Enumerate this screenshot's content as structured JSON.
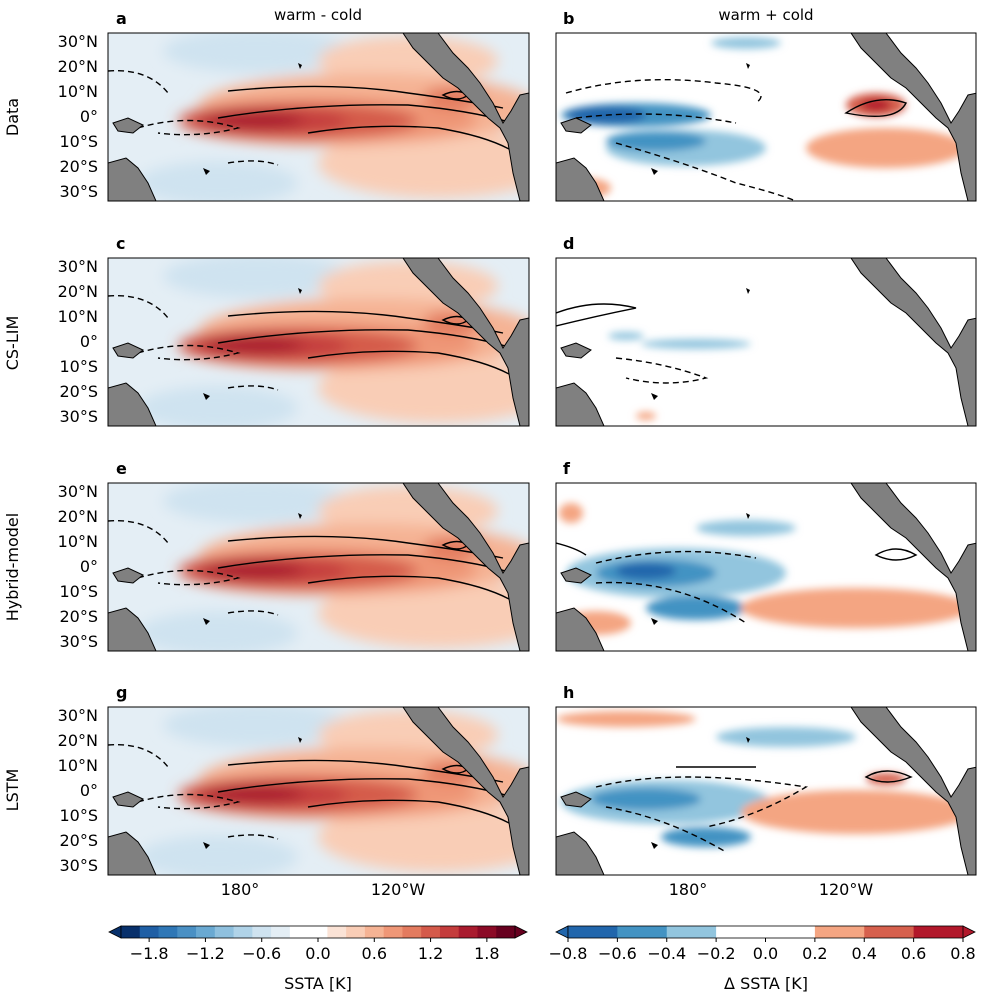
{
  "chart_data": {
    "type": "heatmap",
    "columns": [
      {
        "title": "warm - cold",
        "colorbar_label": "SSTA [K]"
      },
      {
        "title": "warm + cold",
        "colorbar_label": "Δ SSTA [K]"
      }
    ],
    "rows": [
      "Data",
      "CS-LIM",
      "Hybrid-model",
      "LSTM"
    ],
    "panels": [
      {
        "letter": "a",
        "row": "Data",
        "column": "warm - cold"
      },
      {
        "letter": "b",
        "row": "Data",
        "column": "warm + cold"
      },
      {
        "letter": "c",
        "row": "CS-LIM",
        "column": "warm - cold"
      },
      {
        "letter": "d",
        "row": "CS-LIM",
        "column": "warm + cold"
      },
      {
        "letter": "e",
        "row": "Hybrid-model",
        "column": "warm - cold"
      },
      {
        "letter": "f",
        "row": "Hybrid-model",
        "column": "warm + cold"
      },
      {
        "letter": "g",
        "row": "LSTM",
        "column": "warm - cold"
      },
      {
        "letter": "h",
        "row": "LSTM",
        "column": "warm + cold"
      }
    ],
    "lat_ticks": [
      "30°N",
      "20°N",
      "10°N",
      "0°",
      "10°S",
      "20°S",
      "30°S"
    ],
    "lon_ticks": [
      "180°",
      "120°W"
    ],
    "colorbar_left": {
      "label": "SSTA [K]",
      "range": [
        -2.1,
        2.1
      ],
      "ticks": [
        "−1.8",
        "−1.2",
        "−0.6",
        "0.0",
        "0.6",
        "1.2",
        "1.8"
      ],
      "colors": [
        "#08306b",
        "#1f5fa5",
        "#2f77b6",
        "#4a90c4",
        "#6aa9d2",
        "#8fc0de",
        "#b0d3e8",
        "#cfe3f0",
        "#e4eef5",
        "#ffffff",
        "#ffffff",
        "#fbe3d6",
        "#f9cdb6",
        "#f5b394",
        "#ef9777",
        "#e37b5f",
        "#d45a4a",
        "#c43c3c",
        "#a91b2e",
        "#8b0a26",
        "#67001f"
      ]
    },
    "colorbar_right": {
      "label": "Δ SSTA [K]",
      "range": [
        -0.8,
        0.8
      ],
      "ticks": [
        "−0.8",
        "−0.6",
        "−0.4",
        "−0.2",
        "0.0",
        "0.2",
        "0.4",
        "0.6",
        "0.8"
      ],
      "colors": [
        "#2166ac",
        "#4393c3",
        "#92c5de",
        "#ffffff",
        "#ffffff",
        "#f4a582",
        "#d6604d",
        "#b2182b"
      ]
    },
    "colors": {
      "land": "#808080",
      "coast": "#000000"
    }
  }
}
